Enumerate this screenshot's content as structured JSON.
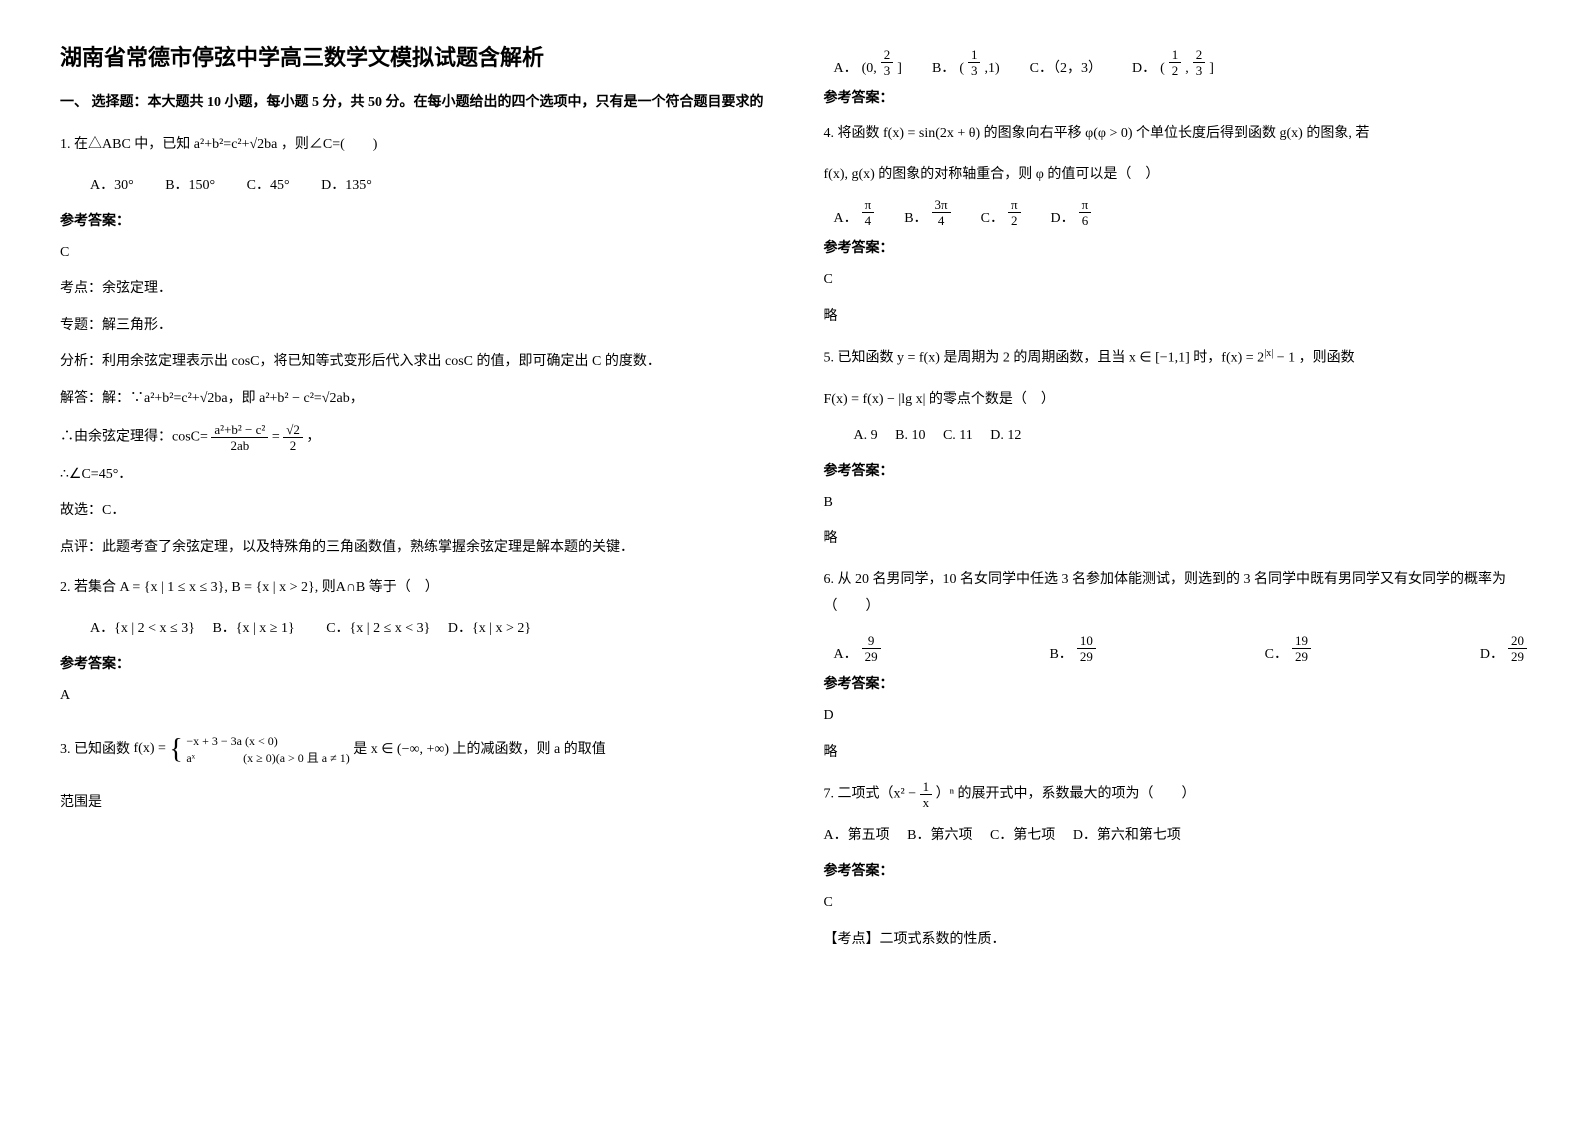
{
  "title": "湖南省常德市停弦中学高三数学文模拟试题含解析",
  "section1_intro": "一、 选择题：本大题共 10 小题，每小题 5 分，共 50 分。在每小题给出的四个选项中，只有是一个符合题目要求的",
  "q1": {
    "stem_pre": "1. 在△ABC 中，已知",
    "stem_mid": "a²+b²=c²+√2ba",
    "stem_post": "，则∠C=(　　)",
    "optA": "A．30°",
    "optB": "B．150°",
    "optC": "C．45°",
    "optD": "D．135°",
    "ans_label": "参考答案：",
    "ans": "C",
    "p1": "考点：余弦定理．",
    "p2": "专题：解三角形．",
    "p3": "分析：利用余弦定理表示出 cosC，将已知等式变形后代入求出 cosC 的值，即可确定出 C 的度数．",
    "p4_pre": "解答：解：∵a²+b²=c²+√2ba，即 a²+b² − c²=√2ab，",
    "p5_pre": "∴由余弦定理得：cosC=",
    "frac1_num": "a²+b² − c²",
    "frac1_den": "2ab",
    "eq": "=",
    "frac2_num": "√2",
    "frac2_den": "2",
    "comma": "，",
    "p6": "∴∠C=45°．",
    "p7": "故选：C．",
    "p8": "点评：此题考查了余弦定理，以及特殊角的三角函数值，熟练掌握余弦定理是解本题的关键．"
  },
  "q2": {
    "stem": "2. 若集合 A = {x | 1 ≤ x ≤ 3}, B = {x | x > 2}, 则A∩B 等于（　）",
    "optA": "A．{x | 2 < x ≤ 3}",
    "optB": "B．{x | x ≥ 1}",
    "optC": "C．{x | 2 ≤ x < 3}",
    "optD": "D．{x | x > 2}",
    "ans_label": "参考答案：",
    "ans": "A"
  },
  "q3": {
    "stem_pre": "3. 已知函数",
    "piece_top": "−x + 3 − 3a (x < 0)",
    "piece_bot": "aˣ    (x ≥ 0)(a > 0 且 a ≠ 1)",
    "stem_mid": "是 x ∈ (−∞, +∞)",
    "stem_post": "上的减函数，则 a 的取值",
    "line2": "范围是",
    "optA_pre": "A．",
    "optA_val": "(0, ⅔]",
    "A_num": "2",
    "A_den": "3",
    "optB_pre": "B．",
    "B_num": "1",
    "B_den": "3",
    "optB_val": "(⅓, 1)",
    "optC": "C．（2，3）",
    "optD_pre": "D．",
    "D_n1": "1",
    "D_d1": "2",
    "D_n2": "2",
    "D_d2": "3",
    "ans_label": "参考答案："
  },
  "q4": {
    "stem1": "4. 将函数 f(x) = sin(2x + θ) 的图象向右平移 φ(φ > 0) 个单位长度后得到函数 g(x) 的图象, 若",
    "stem2": "f(x), g(x) 的图象的对称轴重合，则 φ 的值可以是（　）",
    "A_num": "π",
    "A_den": "4",
    "B_num": "3π",
    "B_den": "4",
    "C_num": "π",
    "C_den": "2",
    "D_num": "π",
    "D_den": "6",
    "ans_label": "参考答案：",
    "ans": "C",
    "note": "略"
  },
  "q5": {
    "stem1_pre": "5. 已知函数 y = f(x) 是周期为 2 的周期函数，且当 x ∈ [−1,1] 时，f(x) = 2",
    "stem1_sup": "|x|",
    "stem1_post": " − 1 ，则函数",
    "stem2": "F(x) = f(x) − |lg x| 的零点个数是（　）",
    "optA": "A. 9",
    "optB": "B. 10",
    "optC": "C. 11",
    "optD": "D. 12",
    "ans_label": "参考答案：",
    "ans": "B",
    "note": "略"
  },
  "q6": {
    "stem": "6. 从 20 名男同学，10 名女同学中任选 3 名参加体能测试，则选到的 3 名同学中既有男同学又有女同学的概率为（　　）",
    "A_num": "9",
    "A_den": "29",
    "B_num": "10",
    "B_den": "29",
    "C_num": "19",
    "C_den": "29",
    "D_num": "20",
    "D_den": "29",
    "ans_label": "参考答案：",
    "ans": "D",
    "note": "略"
  },
  "q7": {
    "stem_pre": "7. 二项式（x² − ",
    "frac_num": "1",
    "frac_den": "x",
    "stem_post": "）ⁿ 的展开式中，系数最大的项为（　　）",
    "optA": "A．第五项",
    "optB": "B．第六项",
    "optC": "C．第七项",
    "optD": "D．第六和第七项",
    "ans_label": "参考答案：",
    "ans": "C",
    "note": "【考点】二项式系数的性质．"
  },
  "labels": {
    "A": "A．",
    "B": "B．",
    "C": "C．",
    "D": "D．"
  }
}
